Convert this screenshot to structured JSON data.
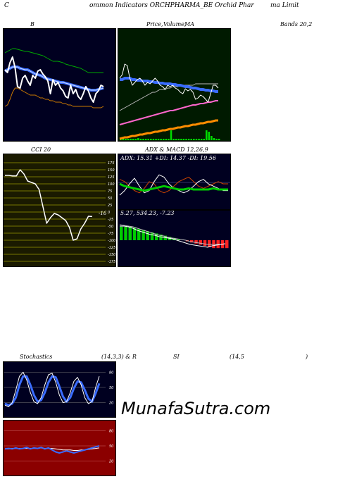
{
  "header": {
    "part1": "C",
    "part2": "ommon  Indicators ORCHPHARMA_BE Orchid Phar",
    "part3": "ma  Limit"
  },
  "row1": {
    "title_b": "B",
    "title_price": "Price,",
    "title_volume": "Volume,",
    "title_ma": "MA",
    "title_bands": "Bands 20,2"
  },
  "row2": {
    "title_cci": "CCI 20",
    "title_adx": "ADX  & MACD 12,26,9",
    "adx_text": "ADX: 15.31  +DI: 14.37  -DI: 19.56",
    "macd_text": "5.27,  534.23,  -7.23",
    "cci_value": "-16"
  },
  "row3": {
    "title_stoch": "Stochastics",
    "title_params": "(14,3,3) & R",
    "title_si": "SI",
    "title_rsi_params": "(14,5",
    "title_close": ")"
  },
  "watermark": "MunafaSutra.com",
  "colors": {
    "dark_navy": "#000020",
    "dark_green": "#001a00",
    "dark_red": "#8b0000",
    "blue_line": "#3a6cff",
    "green_line": "#00cc00",
    "orange_line": "#ff8c00"
  },
  "chart_data": [
    {
      "type": "line",
      "name": "bollinger",
      "series": [
        {
          "name": "price",
          "values": [
            58,
            62,
            48,
            40,
            55,
            82,
            84,
            70,
            66,
            74,
            80,
            66,
            70,
            60,
            58,
            64,
            68,
            74,
            92,
            72,
            80,
            76,
            84,
            88,
            96,
            98,
            80,
            92,
            86,
            96,
            100,
            92,
            82,
            88,
            98,
            104,
            92,
            88,
            80,
            82
          ]
        },
        {
          "name": "upper",
          "values": [
            34,
            32,
            30,
            28,
            28,
            29,
            30,
            31,
            32,
            32,
            33,
            34,
            35,
            36,
            37,
            38,
            40,
            42,
            44,
            46,
            46,
            46,
            47,
            48,
            50,
            51,
            52,
            53,
            54,
            55,
            56,
            58,
            60,
            62,
            62,
            62,
            62,
            62,
            62,
            62
          ]
        },
        {
          "name": "middle",
          "values": [
            60,
            58,
            56,
            54,
            54,
            54,
            56,
            57,
            58,
            58,
            60,
            62,
            64,
            65,
            66,
            68,
            70,
            71,
            72,
            73,
            74,
            75,
            76,
            76,
            77,
            78,
            79,
            80,
            81,
            82,
            83,
            84,
            85,
            86,
            87,
            87,
            87,
            86,
            85,
            84
          ]
        },
        {
          "name": "lower",
          "values": [
            110,
            108,
            100,
            90,
            84,
            84,
            86,
            88,
            90,
            92,
            94,
            94,
            94,
            96,
            98,
            98,
            100,
            100,
            102,
            102,
            104,
            104,
            104,
            106,
            106,
            108,
            108,
            110,
            110,
            110,
            110,
            110,
            110,
            110,
            110,
            112,
            112,
            112,
            112,
            110
          ]
        }
      ]
    },
    {
      "type": "line",
      "name": "price-volume-ma",
      "series": [
        {
          "name": "price",
          "values": [
            70,
            65,
            50,
            52,
            70,
            80,
            76,
            72,
            70,
            74,
            80,
            76,
            78,
            74,
            70,
            74,
            80,
            82,
            86,
            80,
            82,
            80,
            84,
            86,
            90,
            92,
            85,
            88,
            86,
            90,
            100,
            98,
            94,
            96,
            100,
            104,
            92,
            80,
            80,
            84
          ]
        },
        {
          "name": "ma_blue",
          "values": [
            72,
            72,
            70,
            70,
            70,
            72,
            72,
            73,
            73,
            74,
            74,
            74,
            75,
            75,
            76,
            76,
            77,
            77,
            78,
            78,
            78,
            79,
            79,
            80,
            80,
            81,
            82,
            82,
            83,
            84,
            84,
            85,
            86,
            86,
            87,
            87,
            88,
            88,
            89,
            89
          ]
        },
        {
          "name": "ma_grey",
          "values": [
            116,
            114,
            112,
            110,
            108,
            106,
            104,
            102,
            100,
            98,
            96,
            94,
            92,
            90,
            90,
            88,
            86,
            86,
            86,
            84,
            84,
            82,
            82,
            82,
            80,
            80,
            80,
            80,
            80,
            80,
            78,
            78,
            78,
            78,
            78,
            78,
            78,
            78,
            78,
            78
          ]
        },
        {
          "name": "ma_pink",
          "values": [
            136,
            135,
            134,
            133,
            132,
            131,
            130,
            129,
            128,
            127,
            126,
            125,
            124,
            123,
            122,
            121,
            120,
            119,
            118,
            117,
            116,
            116,
            115,
            114,
            113,
            112,
            111,
            110,
            109,
            108,
            108,
            107,
            106,
            106,
            105,
            104,
            104,
            103,
            102,
            102
          ]
        },
        {
          "name": "ma_orange",
          "values": [
            156,
            155,
            154,
            154,
            153,
            152,
            152,
            151,
            150,
            150,
            149,
            148,
            148,
            147,
            146,
            146,
            145,
            144,
            144,
            143,
            142,
            142,
            141,
            140,
            140,
            139,
            138,
            138,
            137,
            136,
            136,
            135,
            134,
            134,
            133,
            132,
            132,
            131,
            130,
            130
          ]
        }
      ]
    },
    {
      "type": "line",
      "name": "cci",
      "ylim": [
        -175,
        175
      ],
      "ticks": [
        175,
        150,
        125,
        100,
        75,
        50,
        25,
        0,
        -25,
        -50,
        -75,
        -100,
        -125,
        -150,
        -175
      ],
      "values": [
        130,
        130,
        128,
        128,
        150,
        135,
        110,
        105,
        100,
        80,
        20,
        -40,
        -20,
        -5,
        -10,
        -20,
        -30,
        -55,
        -100,
        -95,
        -60,
        -40,
        -15,
        -16
      ]
    },
    {
      "type": "line",
      "name": "adx-di",
      "series": [
        {
          "name": "adx",
          "values": [
            20,
            18,
            17,
            16,
            15,
            14,
            15,
            16,
            17,
            18,
            17,
            16,
            15,
            15,
            16,
            15,
            15,
            15,
            15,
            16,
            15,
            15,
            15
          ]
        },
        {
          "name": "plus_di",
          "values": [
            10,
            14,
            20,
            25,
            18,
            12,
            14,
            22,
            28,
            26,
            20,
            16,
            14,
            12,
            14,
            18,
            22,
            24,
            20,
            18,
            16,
            14,
            14
          ]
        },
        {
          "name": "minus_di",
          "values": [
            24,
            22,
            18,
            14,
            12,
            16,
            22,
            20,
            14,
            12,
            14,
            18,
            22,
            24,
            26,
            22,
            18,
            16,
            18,
            20,
            22,
            20,
            20
          ]
        }
      ]
    },
    {
      "type": "bar",
      "name": "macd",
      "values": [
        12,
        12,
        12,
        11,
        10,
        9,
        8,
        7,
        6,
        5,
        4,
        3,
        2,
        1,
        0,
        -1,
        -2,
        -3,
        -4,
        -5,
        -6,
        -7,
        -7,
        -7,
        -7
      ]
    },
    {
      "type": "line",
      "name": "stochastics",
      "ticks": [
        80,
        50,
        20
      ],
      "series": [
        {
          "name": "k",
          "values": [
            15,
            12,
            20,
            45,
            72,
            80,
            65,
            40,
            22,
            18,
            30,
            55,
            75,
            78,
            60,
            35,
            20,
            22,
            40,
            62,
            70,
            55,
            30,
            18,
            22,
            50,
            72
          ]
        },
        {
          "name": "d",
          "values": [
            18,
            15,
            18,
            30,
            55,
            72,
            72,
            55,
            35,
            22,
            25,
            40,
            60,
            72,
            70,
            52,
            32,
            22,
            30,
            48,
            62,
            60,
            45,
            28,
            22,
            38,
            58
          ]
        }
      ]
    },
    {
      "type": "line",
      "name": "rsi",
      "ticks": [
        80,
        50,
        20
      ],
      "series": [
        {
          "name": "rsi",
          "values": [
            44,
            45,
            44,
            46,
            44,
            45,
            47,
            44,
            46,
            45,
            47,
            44,
            46,
            42,
            38,
            36,
            38,
            40,
            38,
            36,
            38,
            40,
            42,
            44,
            46,
            48,
            50
          ]
        },
        {
          "name": "rsi_ma",
          "values": [
            44,
            44,
            45,
            45,
            45,
            45,
            45,
            45,
            45,
            45,
            46,
            45,
            45,
            45,
            44,
            43,
            42,
            42,
            42,
            41,
            41,
            42,
            42,
            43,
            44,
            45,
            46
          ]
        }
      ]
    }
  ]
}
